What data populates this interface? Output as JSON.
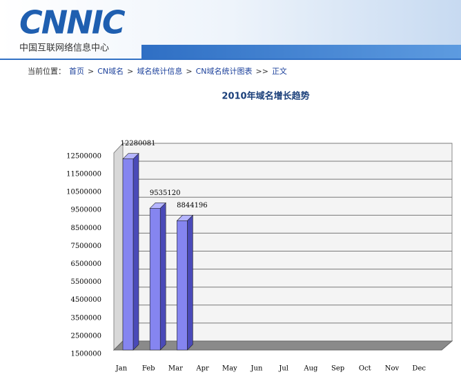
{
  "header": {
    "logo": "CNNIC",
    "subtitle": "中国互联网络信息中心"
  },
  "breadcrumb": [
    "当前位置：",
    "首页",
    ">",
    "CN域名",
    ">",
    "域名统计信息",
    ">",
    "CN域名统计图表",
    ">>",
    "正文"
  ],
  "chart_data": {
    "type": "bar3d",
    "title": "2010年域名增长趋势",
    "categories": [
      "Jan",
      "Feb",
      "Mar",
      "Apr",
      "May",
      "Jun",
      "Jul",
      "Aug",
      "Sep",
      "Oct",
      "Nov",
      "Dec"
    ],
    "values": [
      12280081,
      9535120,
      8844196,
      null,
      null,
      null,
      null,
      null,
      null,
      null,
      null,
      null
    ],
    "color": "#8585f0",
    "ylim": [
      1500000,
      13150000
    ],
    "yticks": [
      1500000,
      2500000,
      3500000,
      4500000,
      5500000,
      6500000,
      7500000,
      8500000,
      9500000,
      10500000,
      11500000,
      12500000
    ],
    "grid": true
  }
}
